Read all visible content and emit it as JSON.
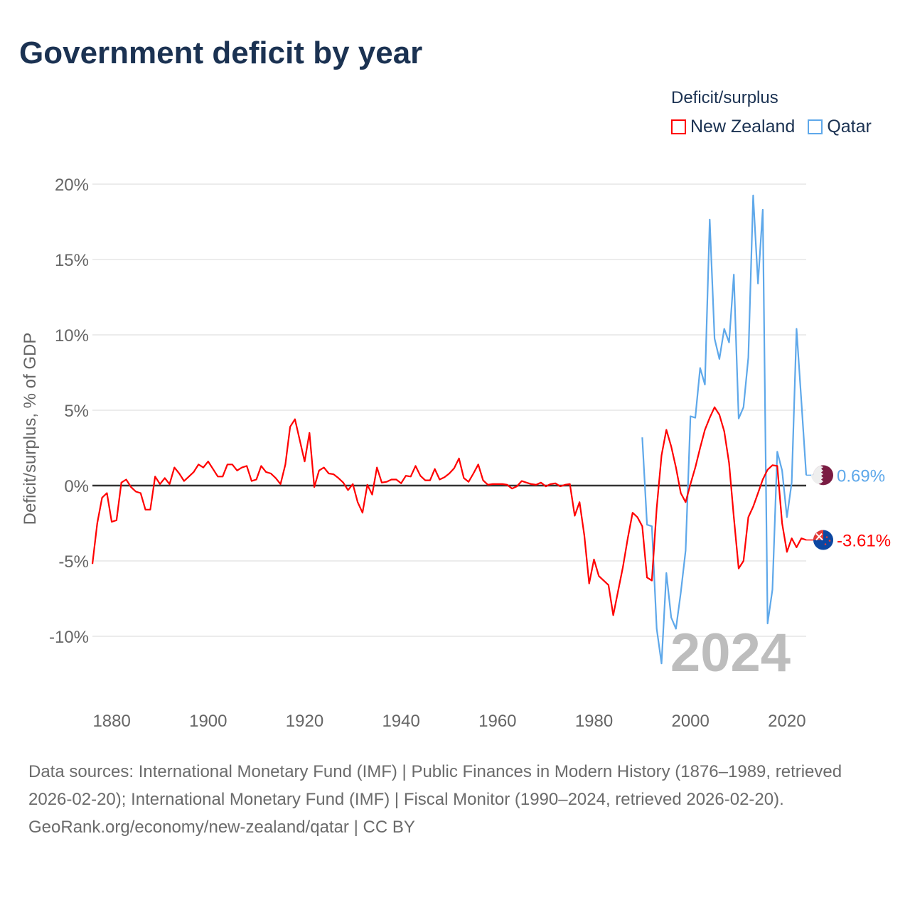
{
  "title": "Government deficit by year",
  "legend": {
    "title": "Deficit/surplus",
    "items": [
      {
        "label": "New Zealand",
        "color": "#ff0000"
      },
      {
        "label": "Qatar",
        "color": "#5ea8ea"
      }
    ]
  },
  "footer": {
    "sources": "Data sources: International Monetary Fund (IMF) | Public Finances in Modern History (1876–1989, retrieved 2026-02-20); International Monetary Fund (IMF) | Fiscal Monitor (1990–2024, retrieved 2026-02-20).",
    "credit": "GeoRank.org/economy/new-zealand/qatar | CC BY"
  },
  "chart_data": {
    "type": "line",
    "title": "Government deficit by year",
    "xlabel": "",
    "ylabel": "Deficit/surplus, % of GDP",
    "xlim": [
      1876,
      2024
    ],
    "ylim": [
      -12.5,
      20
    ],
    "x_ticks": [
      1880,
      1900,
      1920,
      1940,
      1960,
      1980,
      2000,
      2020
    ],
    "y_ticks": [
      20,
      15,
      10,
      5,
      0,
      -5,
      -10
    ],
    "y_tick_labels": [
      "20%",
      "15%",
      "10%",
      "5%",
      "0%",
      "-5%",
      "-10%"
    ],
    "grid": true,
    "legend_position": "top-right",
    "year_watermark": "2024",
    "series": [
      {
        "name": "New Zealand",
        "color": "#ff0000",
        "start_year": 1876,
        "end_label": "-3.61%",
        "flag": "new-zealand",
        "values": [
          -5.2,
          -2.5,
          -0.8,
          -0.5,
          -2.4,
          -2.3,
          0.2,
          0.4,
          -0.1,
          -0.4,
          -0.5,
          -1.6,
          -1.6,
          0.6,
          0.1,
          0.5,
          0.1,
          1.2,
          0.8,
          0.3,
          0.6,
          0.9,
          1.4,
          1.2,
          1.6,
          1.1,
          0.6,
          0.6,
          1.4,
          1.4,
          1.0,
          1.2,
          1.3,
          0.3,
          0.4,
          1.3,
          0.9,
          0.8,
          0.5,
          0.1,
          1.4,
          3.9,
          4.4,
          3.0,
          1.6,
          3.5,
          -0.1,
          1.0,
          1.2,
          0.8,
          0.75,
          0.5,
          0.2,
          -0.3,
          0.1,
          -1.1,
          -1.8,
          0.05,
          -0.6,
          1.2,
          0.2,
          0.25,
          0.4,
          0.4,
          0.15,
          0.65,
          0.6,
          1.3,
          0.65,
          0.35,
          0.35,
          1.1,
          0.4,
          0.55,
          0.8,
          1.15,
          1.8,
          0.5,
          0.25,
          0.8,
          1.4,
          0.35,
          0.05,
          0.1,
          0.1,
          0.1,
          0.05,
          -0.2,
          -0.05,
          0.3,
          0.2,
          0.1,
          0.05,
          0.2,
          -0.05,
          0.1,
          0.15,
          -0.05,
          0.05,
          0.1,
          -2.0,
          -1.1,
          -3.3,
          -6.5,
          -4.9,
          -6.0,
          -6.3,
          -6.6,
          -8.6,
          -7.0,
          -5.4,
          -3.5,
          -1.8,
          -2.1,
          -2.7,
          -6.1,
          -6.3,
          -1.5,
          2.0,
          3.7,
          2.6,
          1.2,
          -0.5,
          -1.1,
          0.1,
          1.2,
          2.5,
          3.7,
          4.5,
          5.2,
          4.7,
          3.6,
          1.5,
          -2.1,
          -5.5,
          -5.0,
          -2.1,
          -1.4,
          -0.5,
          0.4,
          1.05,
          1.35,
          1.3,
          -2.5,
          -4.4,
          -3.5,
          -4.1,
          -3.5,
          -3.61
        ]
      },
      {
        "name": "Qatar",
        "color": "#5ea8ea",
        "start_year": 1990,
        "end_label": "0.69%",
        "flag": "qatar",
        "values": [
          3.2,
          -2.6,
          -2.7,
          -9.5,
          -11.8,
          -5.8,
          -8.75,
          -9.5,
          -7.1,
          -4.3,
          4.6,
          4.5,
          7.8,
          6.7,
          17.65,
          9.75,
          8.4,
          10.4,
          9.5,
          14.0,
          4.45,
          5.2,
          8.5,
          19.25,
          13.4,
          18.3,
          -9.15,
          -6.9,
          2.25,
          1.0,
          -2.1,
          0.2,
          10.4,
          5.6,
          0.69
        ]
      }
    ]
  }
}
